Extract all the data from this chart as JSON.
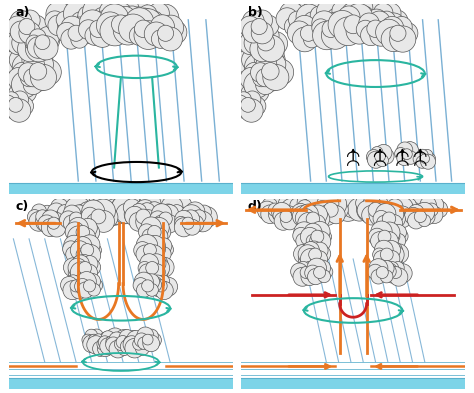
{
  "bg_color": "#ffffff",
  "panel_labels": [
    "a)",
    "b)",
    "c)",
    "d)"
  ],
  "teal": "#2ab5a0",
  "orange": "#e87722",
  "red": "#cc2222",
  "black": "#111111",
  "rain_color": "#7ab0d4",
  "cloud_color": "#e8e8e8",
  "cloud_edge": "#555555",
  "water_color": "#7dd4e8",
  "water_edge": "#5ab0cc"
}
